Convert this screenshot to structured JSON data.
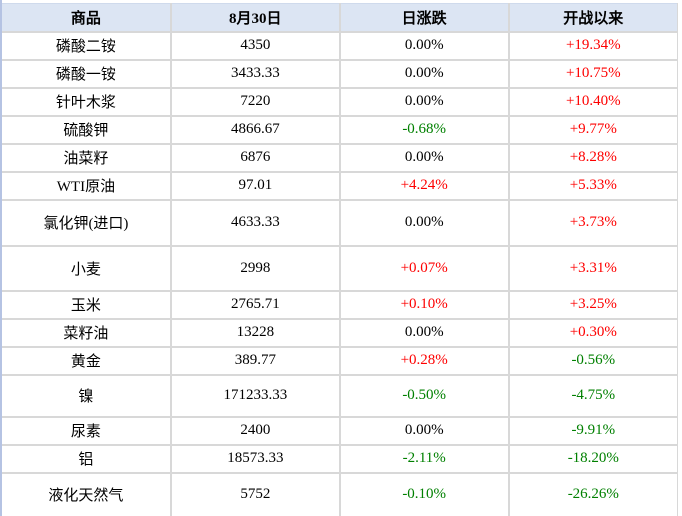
{
  "chart_data": {
    "type": "table",
    "columns": [
      "商品",
      "8月30日",
      "日涨跌",
      "开战以来"
    ],
    "rows": [
      [
        "磷酸二铵",
        "4350",
        "0.00%",
        "+19.34%"
      ],
      [
        "磷酸一铵",
        "3433.33",
        "0.00%",
        "+10.75%"
      ],
      [
        "针叶木浆",
        "7220",
        "0.00%",
        "+10.40%"
      ],
      [
        "硫酸钾",
        "4866.67",
        "-0.68%",
        "+9.77%"
      ],
      [
        "油菜籽",
        "6876",
        "0.00%",
        "+8.28%"
      ],
      [
        "WTI原油",
        "97.01",
        "+4.24%",
        "+5.33%"
      ],
      [
        "氯化钾(进口)",
        "4633.33",
        "0.00%",
        "+3.73%"
      ],
      [
        "小麦",
        "2998",
        "+0.07%",
        "+3.31%"
      ],
      [
        "玉米",
        "2765.71",
        "+0.10%",
        "+3.25%"
      ],
      [
        "菜籽油",
        "13228",
        "0.00%",
        "+0.30%"
      ],
      [
        "黄金",
        "389.77",
        "+0.28%",
        "-0.56%"
      ],
      [
        "镍",
        "171233.33",
        "-0.50%",
        "-4.75%"
      ],
      [
        "尿素",
        "2400",
        "0.00%",
        "-9.91%"
      ],
      [
        "铝",
        "18573.33",
        "-2.11%",
        "-18.20%"
      ],
      [
        "液化天然气",
        "5752",
        "-0.10%",
        "-26.26%"
      ]
    ]
  },
  "colors": {
    "positive_change": "#fe0000",
    "negative_change": "#008000",
    "neutral_change": "#000000",
    "header_background": "#dce5f3",
    "grid_border": "#d8d8d8",
    "left_edge": "#b5c3e3"
  }
}
